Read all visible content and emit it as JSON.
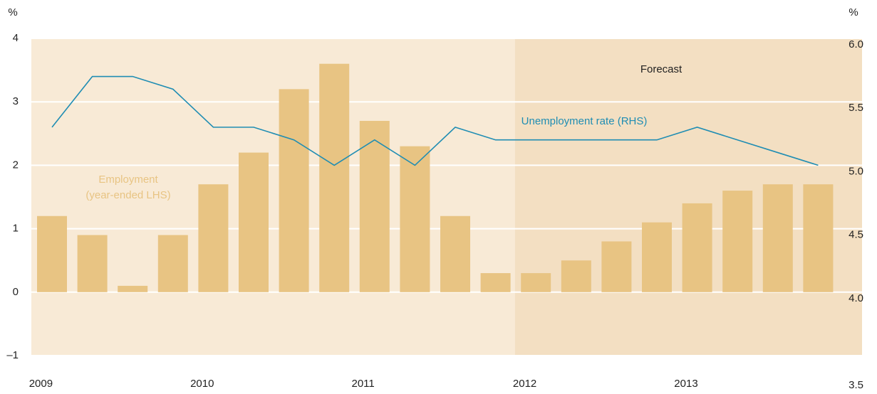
{
  "chart_data": {
    "type": "bar-line",
    "y_unit": "%",
    "y2_unit": "%",
    "annotations": [
      "Forecast"
    ],
    "x_year_labels": [
      "2009",
      "2010",
      "2011",
      "2012",
      "2013"
    ],
    "categories": [
      null,
      null,
      null,
      null,
      null,
      null,
      null,
      null,
      null,
      null,
      null,
      null,
      null,
      null,
      null,
      null,
      null,
      null,
      null,
      null
    ],
    "series": [
      {
        "name": "Employment\n(year-ended LHS)",
        "color": "#e8c483",
        "axis": "y",
        "values": [
          1.2,
          0.9,
          0.1,
          0.9,
          1.7,
          2.2,
          3.2,
          3.6,
          2.7,
          2.3,
          1.2,
          0.3,
          0.3,
          0.5,
          0.8,
          1.1,
          1.4,
          1.6,
          1.7,
          1.7
        ]
      },
      {
        "name": "Unemployment rate (RHS)",
        "color": "#1f8db3",
        "axis": "y2",
        "values": [
          5.3,
          5.7,
          5.7,
          5.6,
          5.3,
          5.3,
          5.2,
          5.0,
          5.2,
          5.0,
          5.3,
          5.2,
          5.2,
          5.2,
          5.2,
          5.2,
          5.3,
          5.2,
          5.1,
          5.0
        ]
      }
    ],
    "ylim": [
      -1,
      4
    ],
    "yticks": [
      {
        "value": -1,
        "label": "–1"
      },
      0,
      1,
      2,
      3,
      4
    ],
    "y2lim": [
      3.5,
      6
    ],
    "y2ticks": [
      3.5,
      4.5,
      {
        "value": 4,
        "label": "4.0"
      },
      {
        "value": 5,
        "label": "5.0"
      },
      5.5,
      {
        "value": 6,
        "label": "6.0"
      }
    ],
    "grid": true,
    "forecast_start_index": 12
  }
}
